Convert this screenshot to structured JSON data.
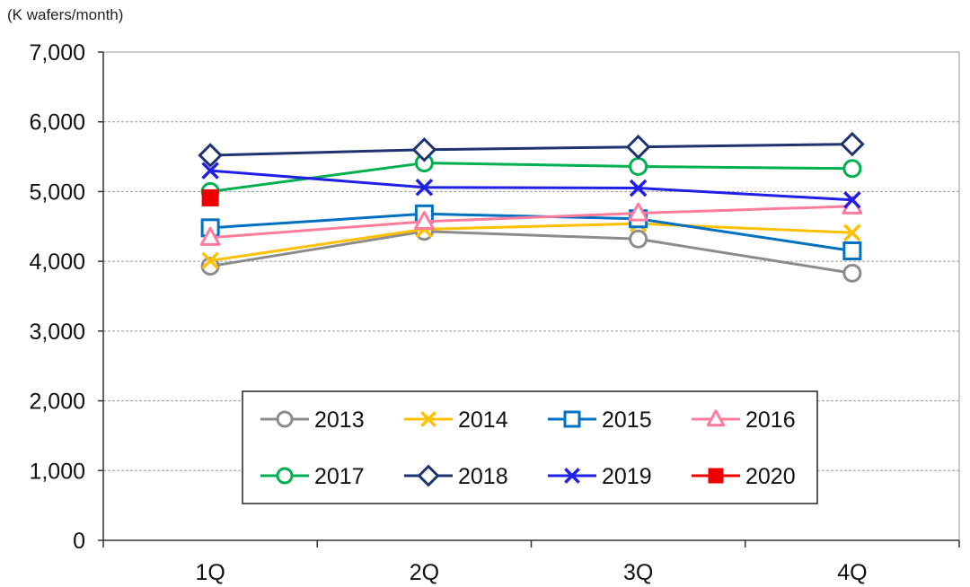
{
  "chart_data": {
    "type": "line",
    "title": "",
    "xlabel": "",
    "ylabel": "(K wafers/month)",
    "ylim": [
      0,
      7000
    ],
    "yticks": [
      0,
      1000,
      2000,
      3000,
      4000,
      5000,
      6000,
      7000
    ],
    "ytick_labels": [
      "0",
      "1,000",
      "2,000",
      "3,000",
      "4,000",
      "5,000",
      "6,000",
      "7,000"
    ],
    "categories": [
      "1Q",
      "2Q",
      "3Q",
      "4Q"
    ],
    "grid": true,
    "legend_position": "bottom-center",
    "series": [
      {
        "name": "2013",
        "color": "#8c8c8c",
        "marker": "circle",
        "values": [
          3930,
          4430,
          4320,
          3830
        ]
      },
      {
        "name": "2014",
        "color": "#ffc000",
        "marker": "x",
        "values": [
          4010,
          4460,
          4540,
          4410
        ]
      },
      {
        "name": "2015",
        "color": "#0070c0",
        "marker": "square",
        "values": [
          4480,
          4680,
          4610,
          4150
        ]
      },
      {
        "name": "2016",
        "color": "#ff7c9c",
        "marker": "triangle",
        "values": [
          4340,
          4570,
          4690,
          4790
        ]
      },
      {
        "name": "2017",
        "color": "#00b050",
        "marker": "circle",
        "values": [
          5000,
          5410,
          5360,
          5330
        ]
      },
      {
        "name": "2018",
        "color": "#1f3370",
        "marker": "diamond",
        "values": [
          5520,
          5600,
          5640,
          5680
        ]
      },
      {
        "name": "2019",
        "color": "#1f1fe6",
        "marker": "x",
        "values": [
          5300,
          5060,
          5050,
          4880
        ]
      },
      {
        "name": "2020",
        "color": "#ee0000",
        "marker": "filled-square",
        "values": [
          4910,
          null,
          null,
          null
        ]
      }
    ]
  }
}
